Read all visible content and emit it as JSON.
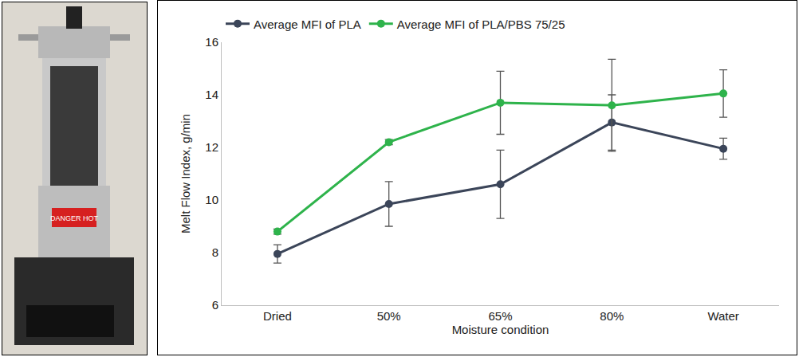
{
  "chart_data": {
    "type": "line",
    "x_label": "Moisture condition",
    "y_label": "Melt Flow Index, g/min",
    "categories": [
      "Dried",
      "50%",
      "65%",
      "80%",
      "Water"
    ],
    "series": [
      {
        "name": "Average MFI of PLA",
        "color": "#3b4559",
        "marker": "circle",
        "line_style": "solid",
        "values": [
          7.95,
          9.85,
          10.6,
          12.95,
          11.95
        ],
        "errors": [
          0.35,
          0.85,
          1.3,
          1.05,
          0.4
        ]
      },
      {
        "name": "Average MFI of PLA/PBS 75/25",
        "color": "#2eb34b",
        "marker": "circle",
        "line_style": "solid",
        "values": [
          8.8,
          12.2,
          13.7,
          13.6,
          14.05
        ],
        "errors": [
          0.1,
          0.1,
          1.2,
          1.75,
          0.9
        ]
      }
    ],
    "ylim": [
      6,
      16
    ],
    "yticks": [
      6,
      8,
      10,
      12,
      14,
      16
    ],
    "grid": false,
    "legend": "top"
  },
  "photo": {
    "label": "DANGER HOT"
  }
}
